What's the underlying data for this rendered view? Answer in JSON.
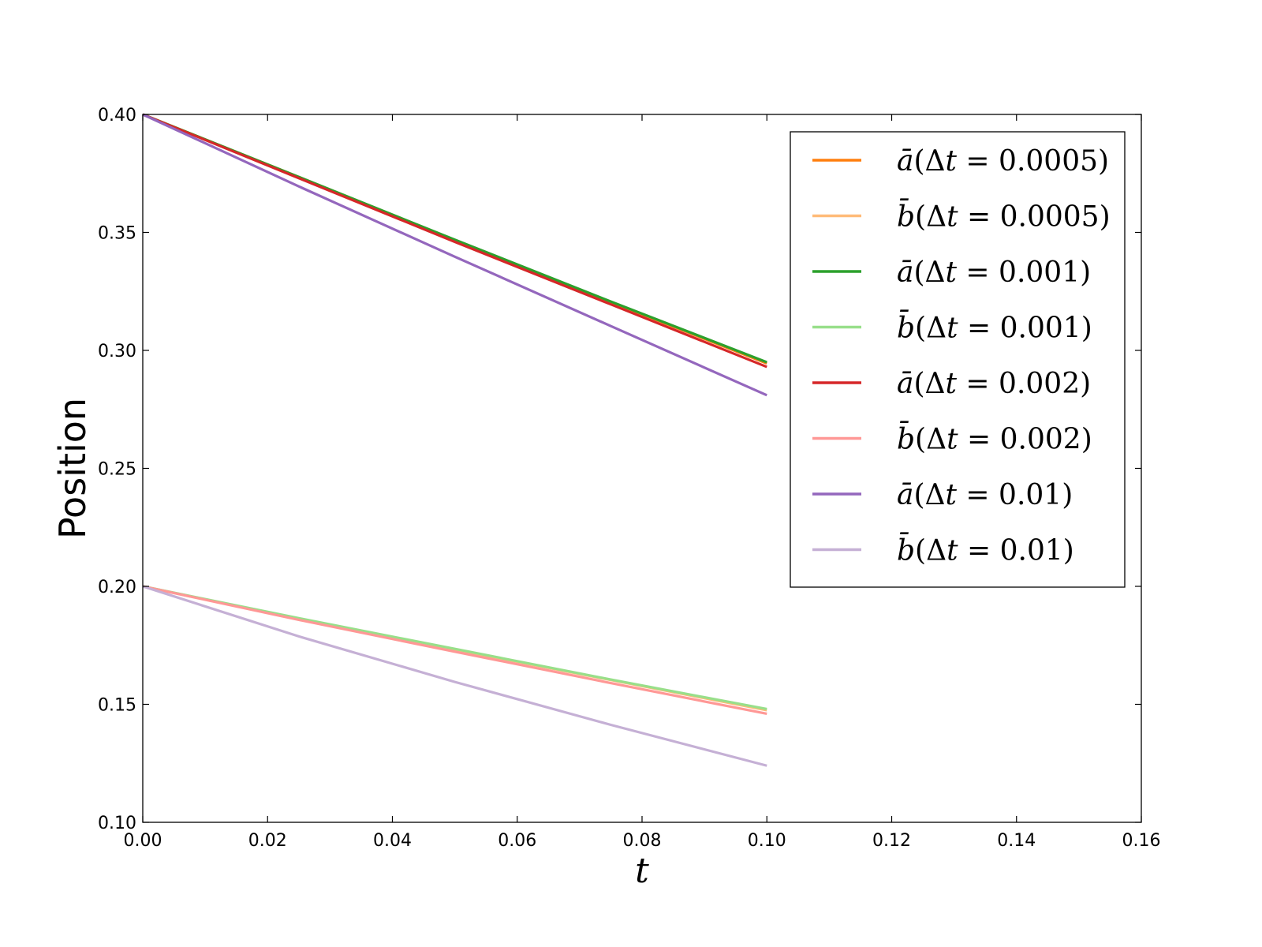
{
  "chart_data": {
    "type": "line",
    "xlabel": "t",
    "ylabel": "Position",
    "xlim": [
      0.0,
      0.16
    ],
    "ylim": [
      0.1,
      0.4
    ],
    "xticks": [
      "0.00",
      "0.02",
      "0.04",
      "0.06",
      "0.08",
      "0.10",
      "0.12",
      "0.14",
      "0.16"
    ],
    "yticks": [
      "0.10",
      "0.15",
      "0.20",
      "0.25",
      "0.30",
      "0.35",
      "0.40"
    ],
    "grid": false,
    "legend_position": "upper right",
    "series": [
      {
        "name": "ā(Δt = 0.0005)",
        "var": "ā",
        "dt": "0.0005",
        "color": "#ff7f0e",
        "x": [
          0.0,
          0.025,
          0.05,
          0.075,
          0.1
        ],
        "y": [
          0.4,
          0.3735,
          0.3468,
          0.3205,
          0.2945
        ]
      },
      {
        "name": "b̄(Δt = 0.0005)",
        "var": "b̄",
        "dt": "0.0005",
        "color": "#ffbb78",
        "x": [
          0.0,
          0.025,
          0.05,
          0.075,
          0.1
        ],
        "y": [
          0.2,
          0.1862,
          0.1732,
          0.1603,
          0.1475
        ]
      },
      {
        "name": "ā(Δt = 0.001)",
        "var": "ā",
        "dt": "0.001",
        "color": "#2ca02c",
        "x": [
          0.0,
          0.025,
          0.05,
          0.075,
          0.1
        ],
        "y": [
          0.4,
          0.3735,
          0.3469,
          0.3207,
          0.295
        ]
      },
      {
        "name": "b̄(Δt = 0.001)",
        "var": "b̄",
        "dt": "0.001",
        "color": "#98df8a",
        "x": [
          0.0,
          0.025,
          0.05,
          0.075,
          0.1
        ],
        "y": [
          0.2,
          0.1865,
          0.1735,
          0.1605,
          0.148
        ]
      },
      {
        "name": "ā(Δt = 0.002)",
        "var": "ā",
        "dt": "0.002",
        "color": "#d62728",
        "x": [
          0.0,
          0.025,
          0.05,
          0.075,
          0.1
        ],
        "y": [
          0.4,
          0.373,
          0.346,
          0.3195,
          0.293
        ]
      },
      {
        "name": "b̄(Δt = 0.002)",
        "var": "b̄",
        "dt": "0.002",
        "color": "#ff9896",
        "x": [
          0.0,
          0.025,
          0.05,
          0.075,
          0.1
        ],
        "y": [
          0.2,
          0.1858,
          0.1723,
          0.159,
          0.146
        ]
      },
      {
        "name": "ā(Δt = 0.01)",
        "var": "ā",
        "dt": "0.01",
        "color": "#9467bd",
        "x": [
          0.0,
          0.025,
          0.05,
          0.075,
          0.1
        ],
        "y": [
          0.4,
          0.3695,
          0.3397,
          0.3103,
          0.281
        ]
      },
      {
        "name": "b̄(Δt = 0.01)",
        "var": "b̄",
        "dt": "0.01",
        "color": "#c5b0d5",
        "x": [
          0.0,
          0.025,
          0.05,
          0.075,
          0.1
        ],
        "y": [
          0.2,
          0.1788,
          0.1595,
          0.1413,
          0.124
        ]
      }
    ]
  }
}
